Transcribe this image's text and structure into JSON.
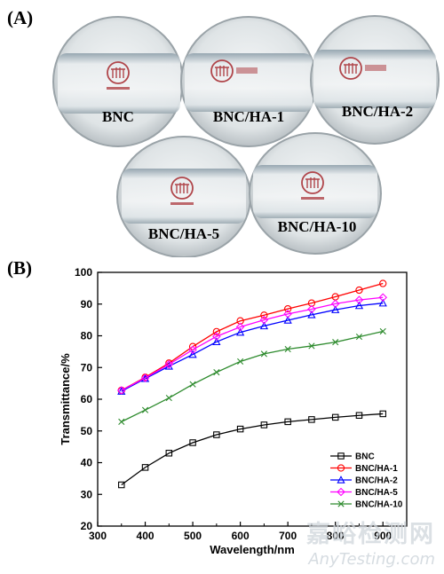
{
  "panel_a_label": "(A)",
  "panel_b_label": "(B)",
  "dishes": [
    {
      "label": "BNC"
    },
    {
      "label": "BNC/HA-1"
    },
    {
      "label": "BNC/HA-2"
    },
    {
      "label": "BNC/HA-5"
    },
    {
      "label": "BNC/HA-10"
    }
  ],
  "watermark": {
    "cn": "嘉峪检测网",
    "en": "AnyTesting.com"
  },
  "chart_data": {
    "type": "line",
    "xlabel": "Wavelength/nm",
    "ylabel": "Transmittance/%",
    "xlim": [
      300,
      950
    ],
    "ylim": [
      20,
      100
    ],
    "xticks": [
      300,
      400,
      500,
      600,
      700,
      800,
      900
    ],
    "yticks": [
      20,
      30,
      40,
      50,
      60,
      70,
      80,
      90,
      100
    ],
    "x": [
      350,
      400,
      450,
      500,
      550,
      600,
      650,
      700,
      750,
      800,
      850,
      900
    ],
    "legend_position": "bottom-right",
    "series": [
      {
        "name": "BNC",
        "color": "#000000",
        "marker": "square",
        "values": [
          33.0,
          38.5,
          43.0,
          46.3,
          48.8,
          50.6,
          51.9,
          52.9,
          53.6,
          54.3,
          54.9,
          55.4
        ]
      },
      {
        "name": "BNC/HA-1",
        "color": "#ff0000",
        "marker": "circle",
        "values": [
          62.8,
          66.9,
          71.4,
          76.6,
          81.3,
          84.7,
          86.5,
          88.5,
          90.3,
          92.3,
          94.4,
          96.5
        ]
      },
      {
        "name": "BNC/HA-2",
        "color": "#0000ff",
        "marker": "triangle",
        "values": [
          62.5,
          66.5,
          70.4,
          74.1,
          78.1,
          81.1,
          83.1,
          84.9,
          86.6,
          88.2,
          89.5,
          90.3
        ]
      },
      {
        "name": "BNC/HA-5",
        "color": "#ff00ff",
        "marker": "diamond",
        "values": [
          62.8,
          66.7,
          71.0,
          75.6,
          79.8,
          82.8,
          85.0,
          86.9,
          88.4,
          90.1,
          91.3,
          92.1
        ]
      },
      {
        "name": "BNC/HA-10",
        "color": "#2e8b2e",
        "marker": "x",
        "values": [
          52.9,
          56.6,
          60.4,
          64.7,
          68.5,
          71.9,
          74.3,
          75.8,
          76.8,
          78.0,
          79.7,
          81.4
        ]
      }
    ]
  }
}
